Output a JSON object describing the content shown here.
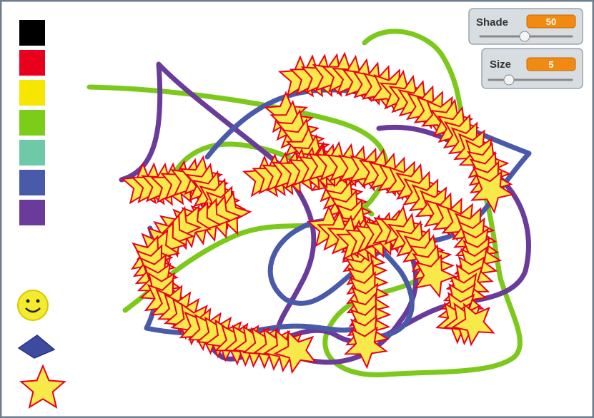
{
  "monitors": [
    {
      "label": "Shade",
      "value": "50"
    },
    {
      "label": "Size",
      "value": "5"
    }
  ]
}
